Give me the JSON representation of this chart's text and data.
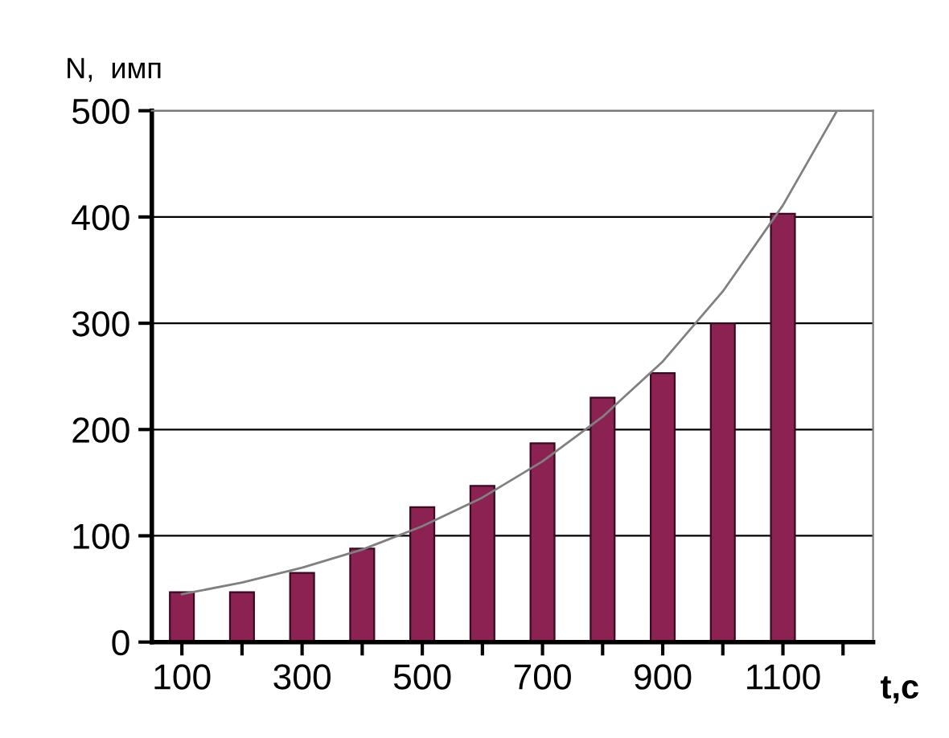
{
  "chart_data": {
    "type": "bar",
    "ylabel": "N,  имп",
    "xlabel": "t,c",
    "x": [
      100,
      200,
      300,
      400,
      500,
      600,
      700,
      800,
      900,
      1000,
      1100
    ],
    "series": [
      {
        "color": "#8b2252",
        "values": [
          47,
          47,
          65,
          88,
          127,
          147,
          187,
          230,
          253,
          300,
          403
        ]
      },
      {
        "type": "line",
        "color": "#808080",
        "x": [
          100,
          200,
          300,
          400,
          500,
          600,
          700,
          800,
          900,
          1000,
          1100,
          1190
        ],
        "values": [
          45,
          56,
          70,
          87,
          109,
          136,
          170,
          212,
          264,
          330,
          411,
          500
        ]
      }
    ],
    "xlim": [
      50,
      1250
    ],
    "ylim": [
      0,
      500
    ],
    "yticks": [
      0,
      100,
      200,
      300,
      400,
      500
    ],
    "xticks": [
      {
        "value": 100,
        "label": "100"
      },
      {
        "value": 200,
        "label": null
      },
      {
        "value": 300,
        "label": "300"
      },
      {
        "value": 400,
        "label": null
      },
      {
        "value": 500,
        "label": "500"
      },
      {
        "value": 600,
        "label": null
      },
      {
        "value": 700,
        "label": "700"
      },
      {
        "value": 800,
        "label": null
      },
      {
        "value": 900,
        "label": "900"
      },
      {
        "value": 1000,
        "label": null
      },
      {
        "value": 1100,
        "label": "1100"
      },
      {
        "value": 1200,
        "label": null
      }
    ],
    "grid": "y",
    "legend": false,
    "marker": "none"
  }
}
